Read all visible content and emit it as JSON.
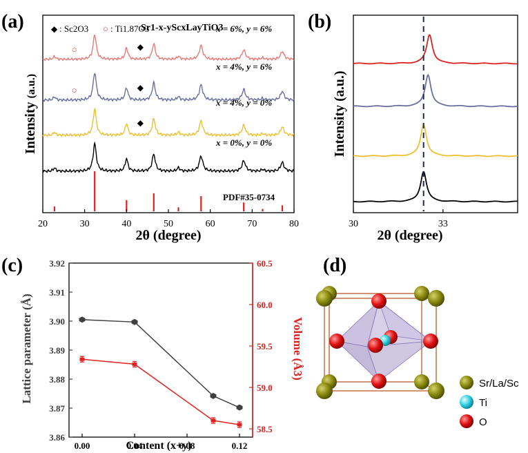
{
  "panels": {
    "a": {
      "label": "(a)"
    },
    "b": {
      "label": "(b)"
    },
    "c": {
      "label": "(c)"
    },
    "d": {
      "label": "(d)"
    }
  },
  "chart_data": [
    {
      "id": "a",
      "type": "line",
      "xlabel": "2θ (degree)",
      "ylabel": "Intensity",
      "ylabel_unit": "(a.u.)",
      "xlim": [
        20,
        80
      ],
      "xticks": [
        20,
        30,
        40,
        50,
        60,
        70,
        80
      ],
      "legend": {
        "sc_sym": "◆",
        "sc_label": ": Sc2O3",
        "ti_sym": "○",
        "ti_label": ": Ti1.87O3"
      },
      "formula": "Sr1-x-yScxLayTiO3",
      "reference": {
        "label": "PDF#35-0734",
        "color": "#e02020",
        "peaks": [
          [
            22.8,
            0.12
          ],
          [
            32.4,
            1.0
          ],
          [
            40.0,
            0.28
          ],
          [
            46.5,
            0.45
          ],
          [
            52.4,
            0.1
          ],
          [
            57.8,
            0.38
          ],
          [
            68.0,
            0.22
          ],
          [
            72.5,
            0.06
          ],
          [
            77.2,
            0.15
          ]
        ]
      },
      "series": [
        {
          "name": "x = 6%,  y = 6%",
          "color": "#e87a7a",
          "sc": [
            43.3
          ],
          "ti": [
            27.5
          ]
        },
        {
          "name": "x = 4%,  y = 6%",
          "color": "#6b6f9e",
          "sc": [
            43.3
          ],
          "ti": [
            27.5
          ]
        },
        {
          "name": "x = 4%,  y = 0%",
          "color": "#ecc030",
          "sc": [
            43.3
          ],
          "ti": []
        },
        {
          "name": "x = 0%,  y = 0%",
          "color": "#000000",
          "sc": [],
          "ti": []
        }
      ],
      "peaks": [
        [
          22.8,
          0.12,
          0.35
        ],
        [
          32.4,
          1.0,
          0.45
        ],
        [
          40.0,
          0.45,
          0.4
        ],
        [
          46.5,
          0.62,
          0.45
        ],
        [
          52.4,
          0.12,
          0.4
        ],
        [
          57.8,
          0.55,
          0.5
        ],
        [
          68.0,
          0.38,
          0.5
        ],
        [
          72.5,
          0.06,
          0.4
        ],
        [
          77.2,
          0.32,
          0.5
        ]
      ]
    },
    {
      "id": "b",
      "type": "line",
      "xlabel": "2θ (degree)",
      "ylabel": "Intensity (a.u.)",
      "xlim": [
        30,
        35.5
      ],
      "xticks": [
        30,
        33
      ],
      "reference_line_x": 32.35,
      "series": [
        {
          "color": "#e02020",
          "peak_x": 32.55
        },
        {
          "color": "#6b6f9e",
          "peak_x": 32.5
        },
        {
          "color": "#ecc030",
          "peak_x": 32.35
        },
        {
          "color": "#000000",
          "peak_x": 32.35
        }
      ]
    },
    {
      "id": "c",
      "type": "line",
      "xlabel": "Content (x+y)",
      "ylabel_left": "Lattice parameter (Å)",
      "ylabel_right": "Volume (Å3)",
      "xlim": [
        -0.01,
        0.13
      ],
      "xticks": [
        "0.00",
        "0.04",
        "0.08",
        "0.12"
      ],
      "ylim_left": [
        3.86,
        3.92
      ],
      "yticks_left": [
        "3.86",
        "3.87",
        "3.88",
        "3.89",
        "3.90",
        "3.91",
        "3.92"
      ],
      "ylim_right": [
        58.4,
        60.5
      ],
      "yticks_right": [
        "58.5",
        "59.0",
        "59.5",
        "60.0",
        "60.5"
      ],
      "series": [
        {
          "axis": "left",
          "color": "#404040",
          "x": [
            0.0,
            0.04,
            0.1,
            0.12
          ],
          "y": [
            3.9005,
            3.8997,
            3.8742,
            3.8702
          ]
        },
        {
          "axis": "right",
          "color": "#e02020",
          "x": [
            0.0,
            0.04,
            0.1,
            0.12
          ],
          "y": [
            59.34,
            59.28,
            58.6,
            58.55
          ]
        }
      ],
      "colors": {
        "left_axis": "#404040",
        "right_axis": "#e02020"
      }
    }
  ],
  "crystal": {
    "legend": [
      {
        "label": "Sr/La/Sc",
        "color": "#8a8a10"
      },
      {
        "label": "Ti",
        "color": "#30d0e0"
      },
      {
        "label": "O",
        "color": "#e01010"
      }
    ]
  }
}
